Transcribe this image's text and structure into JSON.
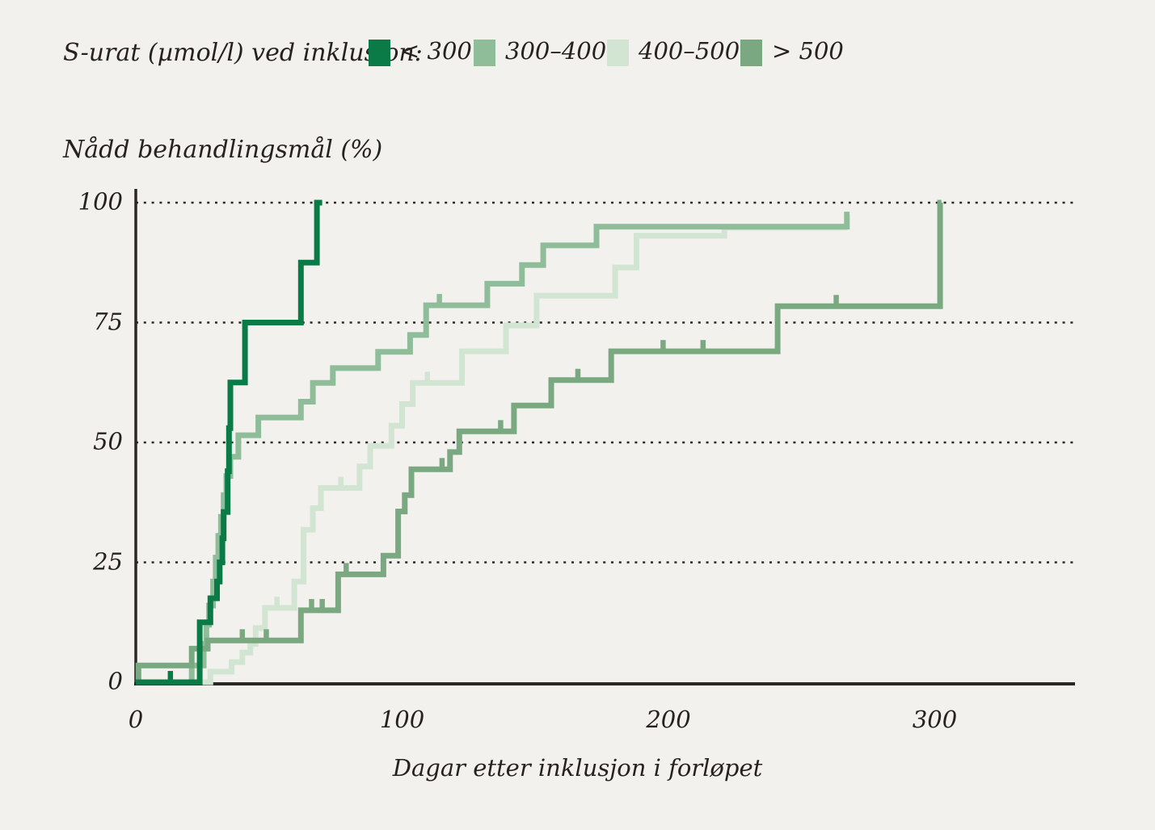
{
  "legend": {
    "title": "S-urat (µmol/l) ved inklusjon:"
  },
  "chart_data": {
    "type": "line",
    "subtype": "kaplan-meier-step",
    "title": "",
    "ylabel": "Nådd behandlingsmål (%)",
    "xlabel": "Dagar etter inklusjon i forløpet",
    "xlim": [
      0,
      352
    ],
    "ylim": [
      0,
      100
    ],
    "x_ticks": [
      0,
      100,
      200,
      300
    ],
    "y_ticks": [
      0,
      25,
      50,
      75,
      100
    ],
    "grid": "dotted-horizontal",
    "legend_position": "top",
    "background_color": "#f2f1ee",
    "axis_color": "#2a2724",
    "series": [
      {
        "key": "lt300",
        "label": "< 300",
        "color": "#0a7a46",
        "steps": [
          [
            24,
            12.5
          ],
          [
            28,
            17.5
          ],
          [
            30.5,
            21
          ],
          [
            31.5,
            25
          ],
          [
            32.5,
            30
          ],
          [
            33,
            35.5
          ],
          [
            34.5,
            44
          ],
          [
            35,
            53
          ],
          [
            35.5,
            62.5
          ],
          [
            41,
            75
          ],
          [
            62,
            87.5
          ],
          [
            68,
            100
          ]
        ],
        "end_day": 70,
        "censor_days": [
          13
        ]
      },
      {
        "key": "g300_400",
        "label": "300–400",
        "color": "#8fbc99",
        "steps": [
          [
            21,
            3.5
          ],
          [
            25.5,
            8
          ],
          [
            26.5,
            12
          ],
          [
            27.5,
            16
          ],
          [
            29,
            21
          ],
          [
            30,
            26
          ],
          [
            31,
            30.5
          ],
          [
            32,
            34.5
          ],
          [
            33,
            39
          ],
          [
            34,
            43
          ],
          [
            35.5,
            47
          ],
          [
            38.5,
            51.5
          ],
          [
            46,
            55.2
          ],
          [
            62,
            58.5
          ],
          [
            66.5,
            62.4
          ],
          [
            74,
            65.5
          ],
          [
            91,
            68.9
          ],
          [
            103,
            72.4
          ],
          [
            109,
            78.6
          ],
          [
            132,
            83.1
          ],
          [
            145,
            87
          ],
          [
            153,
            91.1
          ],
          [
            173,
            95
          ],
          [
            267,
            97.5
          ]
        ],
        "end_day": 268,
        "censor_days": [
          114
        ]
      },
      {
        "key": "g400_500",
        "label": "400–500",
        "color": "#d2e5d3",
        "steps": [
          [
            28,
            2.2
          ],
          [
            36,
            4.2
          ],
          [
            40,
            6.2
          ],
          [
            43,
            8
          ],
          [
            45,
            11.3
          ],
          [
            48.5,
            15.5
          ],
          [
            59.5,
            21
          ],
          [
            63,
            31.8
          ],
          [
            66.5,
            36.3
          ],
          [
            69.5,
            40.5
          ],
          [
            84,
            45
          ],
          [
            88,
            49.3
          ],
          [
            96,
            53.5
          ],
          [
            100,
            58
          ],
          [
            104,
            62.4
          ],
          [
            122.5,
            69
          ],
          [
            139,
            74.4
          ],
          [
            150.5,
            80.6
          ],
          [
            180,
            86.5
          ],
          [
            188,
            93.1
          ],
          [
            221,
            94.8
          ]
        ],
        "end_day": 267,
        "censor_days": [
          53,
          77,
          109.5
        ]
      },
      {
        "key": "gt500",
        "label": "> 500",
        "color": "#7aa981",
        "steps": [
          [
            1,
            3.5
          ],
          [
            21,
            7
          ],
          [
            27,
            8.7
          ],
          [
            62,
            15
          ],
          [
            76,
            22.5
          ],
          [
            93,
            26.4
          ],
          [
            98.5,
            35.6
          ],
          [
            101,
            39
          ],
          [
            103.5,
            44.4
          ],
          [
            118,
            48
          ],
          [
            121.5,
            52.3
          ],
          [
            142,
            57.7
          ],
          [
            156,
            63
          ],
          [
            178.5,
            69
          ],
          [
            241,
            78.4
          ],
          [
            302,
            100
          ]
        ],
        "end_day": 302.5,
        "censor_days": [
          40,
          49,
          66,
          70,
          79,
          115,
          137,
          166,
          198,
          213,
          263
        ]
      }
    ]
  }
}
